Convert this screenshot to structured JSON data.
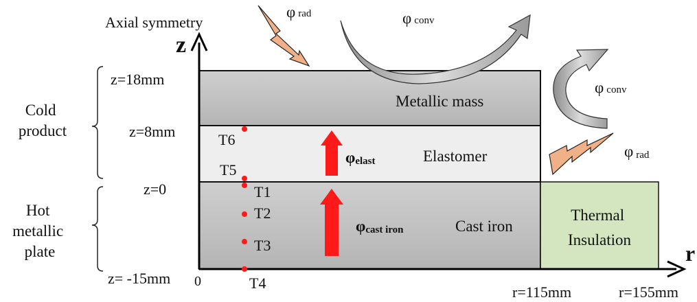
{
  "axes": {
    "z_label": "z",
    "r_label": "r",
    "origin_label": "0",
    "symmetry_label": "Axial symmetry"
  },
  "z_levels": [
    "z=18mm",
    "z=8mm",
    "z=0",
    "z= -15mm"
  ],
  "r_levels": [
    "r=115mm",
    "r=155mm"
  ],
  "groups": {
    "cold_product": [
      "Cold",
      "product"
    ],
    "hot_plate": [
      "Hot",
      "metallic",
      "plate"
    ]
  },
  "layers": {
    "metallic_mass": "Metallic mass",
    "elastomer": "Elastomer",
    "cast_iron": "Cast iron",
    "insulation": [
      "Thermal",
      "Insulation"
    ]
  },
  "sensors": [
    "T1",
    "T2",
    "T3",
    "T4",
    "T5",
    "T6"
  ],
  "fluxes": {
    "phi": "φ",
    "rad_sub": "rad",
    "conv_sub": "conv",
    "elast_sub": "elast",
    "cast_iron_sub": "cast iron"
  },
  "colors": {
    "metal": "#bfbfbf",
    "elastomer": "#efefef",
    "insulation": "#d4e6c0",
    "arrow_red": "#ff1a1a",
    "radiation": "#f0b088",
    "convection": "#b8b8b8"
  }
}
